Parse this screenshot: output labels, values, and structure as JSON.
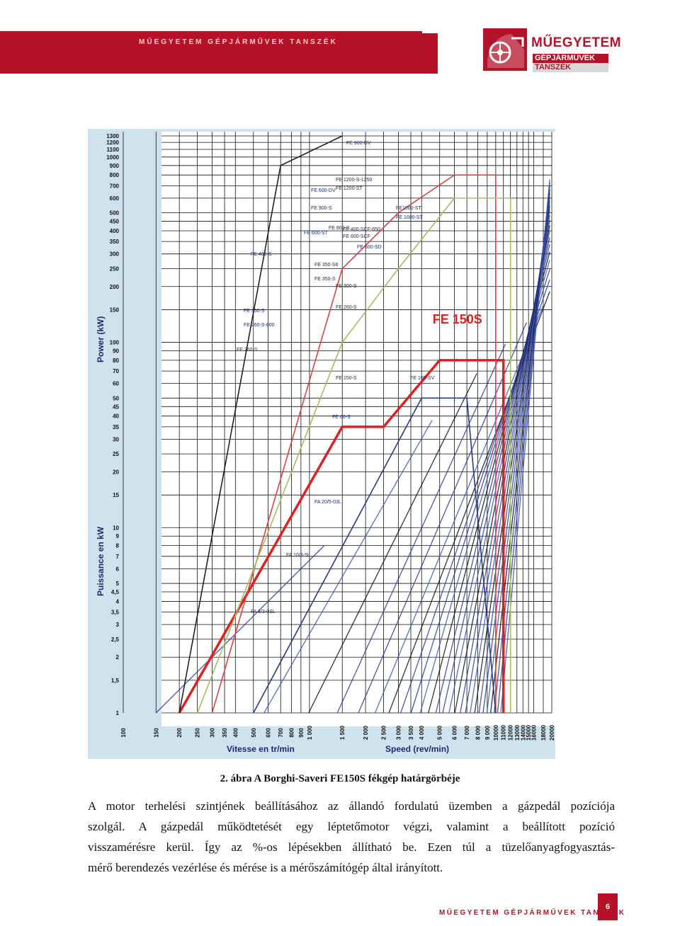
{
  "header": {
    "label": "MŰEGYETEM GÉPJÁRMŰVEK TANSZÉK"
  },
  "logo": {
    "title": "MŰEGYETEM",
    "line1": "GÉPJÁRMŰVEK",
    "line2": "TANSZÉK"
  },
  "chart_data": {
    "type": "line",
    "title": "",
    "highlight_label": "FE 150S",
    "y_axis_label_en": "Power (kW)",
    "y_axis_label_fr": "Puissance en kW",
    "x_axis_label_fr": "Vitesse en tr/min",
    "x_axis_label_en": "Speed (rev/min)",
    "log_scale": true,
    "xlim": [
      100,
      20000
    ],
    "ylim": [
      1,
      1300
    ],
    "y_ticks": [
      "1300",
      "1200",
      "1100",
      "1000",
      "900",
      "800",
      "700",
      "600",
      "500",
      "450",
      "400",
      "350",
      "300",
      "250",
      "200",
      "150",
      "100",
      "90",
      "80",
      "70",
      "60",
      "50",
      "45",
      "40",
      "35",
      "30",
      "25",
      "20",
      "15",
      "10",
      "9",
      "8",
      "7",
      "6",
      "5",
      "4,5",
      "4",
      "3,5",
      "3",
      "2,5",
      "2",
      "1,5",
      "1"
    ],
    "x_ticks": [
      "100",
      "150",
      "200",
      "250",
      "300",
      "350",
      "400",
      "500",
      "600",
      "700",
      "800",
      "900",
      "1 000",
      "1 500",
      "2 000",
      "2 500",
      "3 000",
      "3 500",
      "4 000",
      "5 000",
      "6 000",
      "7 000",
      "8 000",
      "9 000",
      "10000",
      "11000",
      "12000",
      "13000",
      "14000",
      "15000",
      "16000",
      "18000",
      "20000"
    ],
    "series": [
      {
        "name": "FE 150S",
        "color": "#e02020",
        "x": [
          200,
          1500,
          2500,
          5000,
          11000,
          11000
        ],
        "y": [
          1,
          35,
          35,
          80,
          80,
          1
        ]
      },
      {
        "name": "FE 1200-S, -ST",
        "color": "#e04040",
        "x": [
          300,
          1500,
          3000,
          6000,
          10000,
          10000
        ],
        "y": [
          1,
          250,
          500,
          800,
          800,
          1
        ]
      },
      {
        "name": "FE 1000-ST",
        "color": "#a0c060",
        "x": [
          250,
          1500,
          3000,
          6000,
          12000,
          12000
        ],
        "y": [
          1,
          100,
          250,
          600,
          600,
          1
        ]
      },
      {
        "name": "FE 900-DV",
        "color": "#222222",
        "x": [
          200,
          700,
          1500
        ],
        "y": [
          1,
          900,
          1300
        ]
      },
      {
        "name": "FE 60-S",
        "color": "#2a3a8a",
        "x": [
          500,
          4000,
          7000,
          10000
        ],
        "y": [
          1,
          50,
          50,
          1
        ]
      }
    ],
    "curve_labels": [
      "FE 900-DV",
      "FE 600-DV",
      "FE 900-S",
      "FE 600-ST",
      "FE 400-S",
      "FE 350-S6",
      "FE 350-S",
      "FE 1200-S-1250",
      "FE 1200-ST",
      "FE1000-ST",
      "FE 800-S",
      "FE 1000-ST",
      "FE 400-SCF-650",
      "FE 600-SCF",
      "FE 600-SD",
      "FE 300-S",
      "FE 260-S",
      "FE 150-S",
      "FE 100-SV",
      "FE 60-S",
      "FA 20/5-03L",
      "FA 10/3-5L",
      "FA 8/3-0SL",
      "FE 260-S-800",
      "FE 260-S",
      "FE 350-S"
    ]
  },
  "caption": "2. ábra A Borghi-Saveri FE150S fékgép határgörbéje",
  "body_lines": [
    "A motor terhelési szintjének beállításához az állandó fordulatú üzemben a gázpedál pozíciója",
    "szolgál. A gázpedál működtetését egy léptetőmotor végzi, valamint a beállított pozíció",
    "visszamérésre kerül. Így az %-os lépésekben állítható be. Ezen túl a tüzelőanyagfogyasztás-",
    "mérő berendezés vezérlése és mérése is a mérőszámítógép által irányított."
  ],
  "footer": {
    "label": "MŰEGYETEM GÉPJÁRMŰVEK TANSZÉK",
    "page_number": "6"
  }
}
